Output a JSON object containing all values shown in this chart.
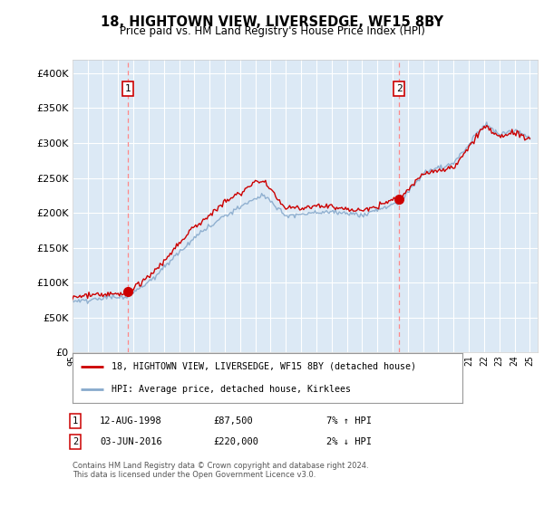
{
  "title": "18, HIGHTOWN VIEW, LIVERSEDGE, WF15 8BY",
  "subtitle": "Price paid vs. HM Land Registry's House Price Index (HPI)",
  "red_line_label": "18, HIGHTOWN VIEW, LIVERSEDGE, WF15 8BY (detached house)",
  "blue_line_label": "HPI: Average price, detached house, Kirklees",
  "point1_date": "12-AUG-1998",
  "point1_price": 87500,
  "point1_label": "1",
  "point1_hpi": "7% ↑ HPI",
  "point2_date": "03-JUN-2016",
  "point2_price": 220000,
  "point2_label": "2",
  "point2_hpi": "2% ↓ HPI",
  "footer": "Contains HM Land Registry data © Crown copyright and database right 2024.\nThis data is licensed under the Open Government Licence v3.0.",
  "xmin": 1995.0,
  "xmax": 2025.5,
  "ymin": 0,
  "ymax": 420000,
  "plot_bg_color": "#dce9f5",
  "fig_bg_color": "#ffffff",
  "red_color": "#cc0000",
  "blue_color": "#88aacc",
  "grid_color": "#ffffff",
  "dashed_color": "#ff8888"
}
